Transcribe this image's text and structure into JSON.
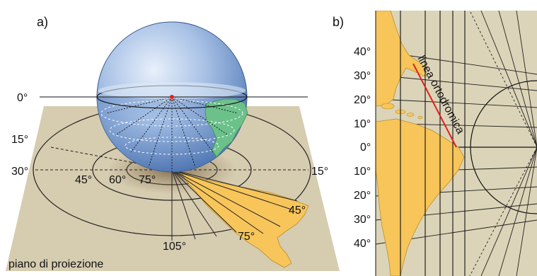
{
  "panel_a": {
    "label": "a)",
    "plane_label": "piano di proiezione",
    "lat_labels": [
      "0°",
      "15°",
      "30°"
    ],
    "ring_labels": [
      "45°",
      "60°",
      "75°"
    ],
    "right_label": "15°",
    "meridian_labels": [
      "105°",
      "75°",
      "45°"
    ]
  },
  "panel_b": {
    "label": "b)",
    "lat_labels_north": [
      "40°",
      "30°",
      "20°",
      "10°"
    ],
    "equator_label": "0°",
    "lat_labels_south": [
      "10°",
      "20°",
      "30°",
      "40°"
    ],
    "route_label": "linea ortodromica"
  },
  "colors": {
    "plane": "#d6ccb0",
    "globe": "#8fb0de",
    "land": "#f7c55a",
    "greenland": "#6cc08a",
    "route": "#e02020",
    "mapbg": "#dcd4b8"
  }
}
